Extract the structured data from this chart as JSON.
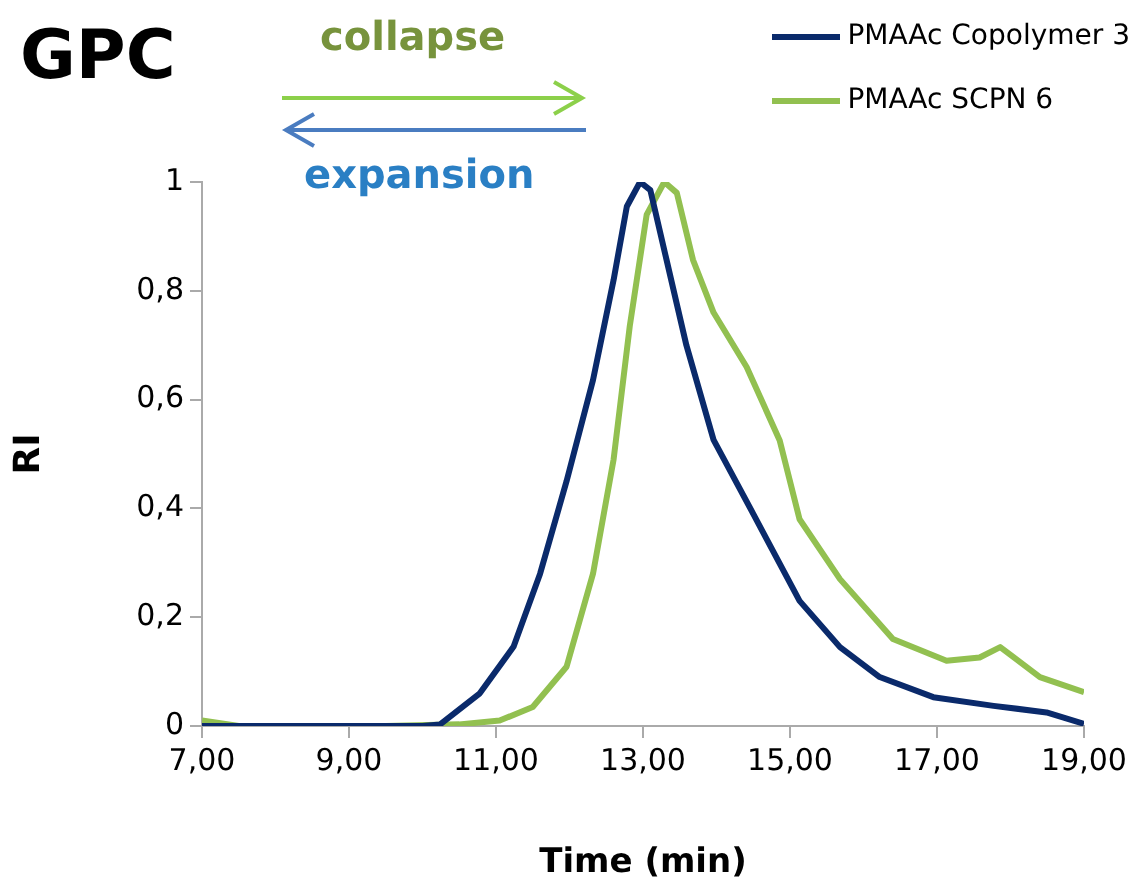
{
  "chart_data": {
    "type": "line",
    "title": "GPC",
    "xlabel": "Time (min)",
    "ylabel": "RI",
    "legend": "top right",
    "grid": false,
    "marker": "none",
    "line_style": "solid",
    "xlim": [
      7,
      19
    ],
    "xticks": [
      {
        "value": 7,
        "label": "7,00"
      },
      {
        "value": 9,
        "label": "9,00"
      },
      {
        "value": 11,
        "label": "11,00"
      },
      {
        "value": 13,
        "label": "13,00"
      },
      {
        "value": 15,
        "label": "15,00"
      },
      {
        "value": 17,
        "label": "17,00"
      },
      {
        "value": 19,
        "label": "19,00"
      }
    ],
    "ylim": [
      0,
      1
    ],
    "yticks": [
      0,
      {
        "value": 0.2,
        "label": "0,2"
      },
      {
        "value": 0.4,
        "label": "0,4"
      },
      {
        "value": 0.6,
        "label": "0,6"
      },
      {
        "value": 0.8,
        "label": "0,8"
      },
      1
    ],
    "annotations": [
      "collapse",
      "expansion"
    ],
    "series": [
      {
        "name": "PMAAc Copolymer 3",
        "color": "#0a2a6b",
        "x": [
          7,
          8,
          9,
          10,
          10.24,
          10.78,
          11.24,
          11.6,
          11.96,
          12.32,
          12.6,
          12.78,
          12.96,
          13.1,
          13.32,
          13.59,
          13.96,
          14.5,
          15.13,
          15.68,
          16.22,
          16.95,
          17.77,
          18.49,
          19
        ],
        "values": [
          0,
          0,
          0,
          0,
          0.003,
          0.06,
          0.146,
          0.28,
          0.45,
          0.636,
          0.82,
          0.955,
          1,
          0.985,
          0.857,
          0.7,
          0.526,
          0.39,
          0.23,
          0.145,
          0.09,
          0.053,
          0.037,
          0.025,
          0.004
        ]
      },
      {
        "name": "PMAAc SCPN 6",
        "color": "#92c050",
        "x": [
          7,
          7.5,
          8.5,
          9.5,
          10.5,
          11.05,
          11.5,
          11.96,
          12.32,
          12.6,
          12.82,
          13.05,
          13.29,
          13.46,
          13.68,
          13.96,
          14.41,
          14.86,
          15.13,
          15.68,
          16.4,
          17.13,
          17.58,
          17.86,
          18.4,
          19
        ],
        "values": [
          0.01,
          0,
          0,
          0,
          0.003,
          0.01,
          0.035,
          0.109,
          0.28,
          0.49,
          0.735,
          0.94,
          1,
          0.98,
          0.857,
          0.76,
          0.66,
          0.525,
          0.38,
          0.27,
          0.16,
          0.12,
          0.126,
          0.145,
          0.09,
          0.062
        ]
      }
    ]
  }
}
